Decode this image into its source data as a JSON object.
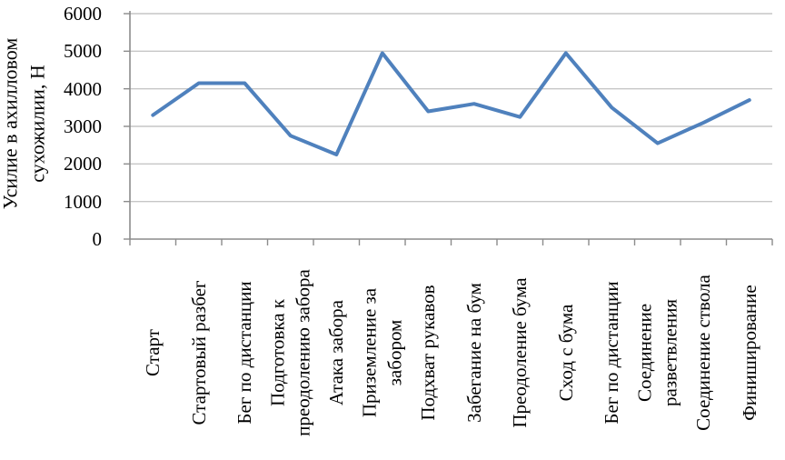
{
  "chart_data": {
    "type": "line",
    "title": "",
    "ylabel": "Усилие в ахилловом\nсухожилии, Н",
    "xlabel": "",
    "categories": [
      "Старт",
      "Стартовый разбег",
      "Бег по дистанции",
      "Подготовка к\nпреодолению забора",
      "Атака забора",
      "Приземление за\nзабором",
      "Подхват рукавов",
      "Забегание на бум",
      "Преодоление бума",
      "Сход с бума",
      "Бег по дистанции",
      "Соединение\nразветвления",
      "Соединение ствола",
      "Финиширование"
    ],
    "values": [
      3300,
      4150,
      4150,
      2750,
      2250,
      4950,
      3400,
      3600,
      3250,
      4950,
      3500,
      2550,
      3100,
      3700
    ],
    "ylim": [
      0,
      6000
    ],
    "yticks": [
      0,
      1000,
      2000,
      3000,
      4000,
      5000,
      6000
    ],
    "grid": true,
    "legend": "none",
    "line_color": "#4F81BD",
    "gridline_color": "#C6C6C6",
    "axis_color": "#8C8C8C"
  }
}
